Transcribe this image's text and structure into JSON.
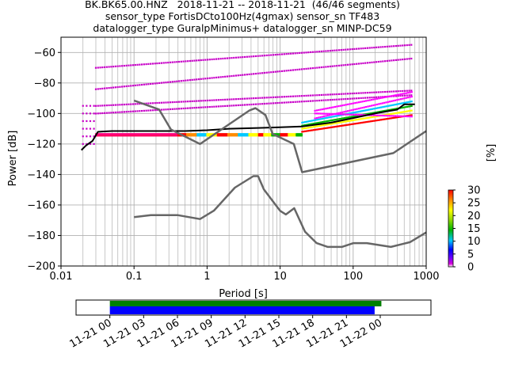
{
  "header": {
    "title_line1": "BK.BK65.00.HNZ   2018-11-21 -- 2018-11-21  (46/46 segments)",
    "title_line2": "sensor_type FortisDCto100Hz(4gmax) sensor_sn TF483",
    "title_line3": "datalogger_type GuralpMinimus+ datalogger_sn MINP-DC59"
  },
  "chart_data": [
    {
      "type": "heatmap",
      "subtype": "probabilistic-power-spectral-density",
      "xlabel": "Period [s]",
      "ylabel": "Power [dB]",
      "x_scale": "log",
      "xlim": [
        0.01,
        1000
      ],
      "ylim": [
        -200,
        -50
      ],
      "x_ticks": [
        0.01,
        0.1,
        1,
        10,
        100,
        1000
      ],
      "x_tick_labels": [
        "0.01",
        "0.1",
        "1",
        "10",
        "100",
        "1000"
      ],
      "y_ticks": [
        -200,
        -180,
        -160,
        -140,
        -120,
        -100,
        -80,
        -60
      ],
      "y_tick_labels": [
        "−200",
        "−180",
        "−160",
        "−140",
        "−120",
        "−100",
        "−80",
        "−60"
      ],
      "grid": true,
      "colorbar": {
        "label": "[%]",
        "range": [
          0,
          30
        ],
        "ticks": [
          0,
          5,
          10,
          15,
          20,
          25,
          30
        ],
        "colormap": [
          "#ffffff",
          "#c800c8",
          "#0000ff",
          "#00d7ff",
          "#00c800",
          "#ffff00",
          "#ff7f00",
          "#ff0000"
        ]
      },
      "series": [
        {
          "role": "mean",
          "color": "#000000",
          "x": [
            0.019,
            0.022,
            0.027,
            0.032,
            0.05,
            0.1,
            0.2,
            0.5,
            1,
            2,
            5,
            10,
            20,
            50,
            100,
            200,
            300,
            400,
            500,
            700
          ],
          "y": [
            -124,
            -121,
            -118,
            -112,
            -111.5,
            -111.5,
            -111.5,
            -111.5,
            -111,
            -110,
            -109.5,
            -109,
            -108.5,
            -106,
            -103,
            -100,
            -98.5,
            -97.5,
            -94,
            -94
          ]
        },
        {
          "role": "noise-model-high",
          "color": "#666666",
          "x": [
            0.1,
            0.22,
            0.32,
            0.8,
            3.8,
            4.6,
            6.3,
            7.9,
            15.4,
            20,
            354.8,
            1000
          ],
          "y": [
            -91.5,
            -97.4,
            -110.5,
            -120,
            -98,
            -96.5,
            -101,
            -113.5,
            -120,
            -138.5,
            -126,
            -111.5
          ]
        },
        {
          "role": "noise-model-low",
          "color": "#666666",
          "x": [
            0.1,
            0.17,
            0.4,
            0.8,
            1.24,
            2.4,
            4.3,
            5,
            6,
            10,
            12,
            15.6,
            21.9,
            31.6,
            45,
            70,
            101,
            154,
            328,
            600,
            1000
          ],
          "y": [
            -168,
            -166.7,
            -166.7,
            -169.2,
            -163.7,
            -148.6,
            -141.1,
            -141.1,
            -149.8,
            -163.8,
            -166.2,
            -162.1,
            -177.5,
            -185,
            -187.5,
            -187.5,
            -185,
            -185,
            -187.5,
            -184.4,
            -178
          ]
        }
      ]
    },
    {
      "type": "bar",
      "subtype": "data-coverage-timeline",
      "x_tick_labels": [
        "11-21 00",
        "11-21 03",
        "11-21 06",
        "11-21 09",
        "11-21 12",
        "11-21 15",
        "11-21 18",
        "11-21 21",
        "11-22 00"
      ],
      "xlim_hours": [
        -3,
        28.5
      ],
      "series": [
        {
          "role": "coverage-used",
          "color": "#008000",
          "start_hour": 0,
          "end_hour": 24.1
        },
        {
          "role": "coverage-data",
          "color": "#0000ff",
          "start_hour": 0,
          "end_hour": 23.5
        }
      ]
    }
  ]
}
